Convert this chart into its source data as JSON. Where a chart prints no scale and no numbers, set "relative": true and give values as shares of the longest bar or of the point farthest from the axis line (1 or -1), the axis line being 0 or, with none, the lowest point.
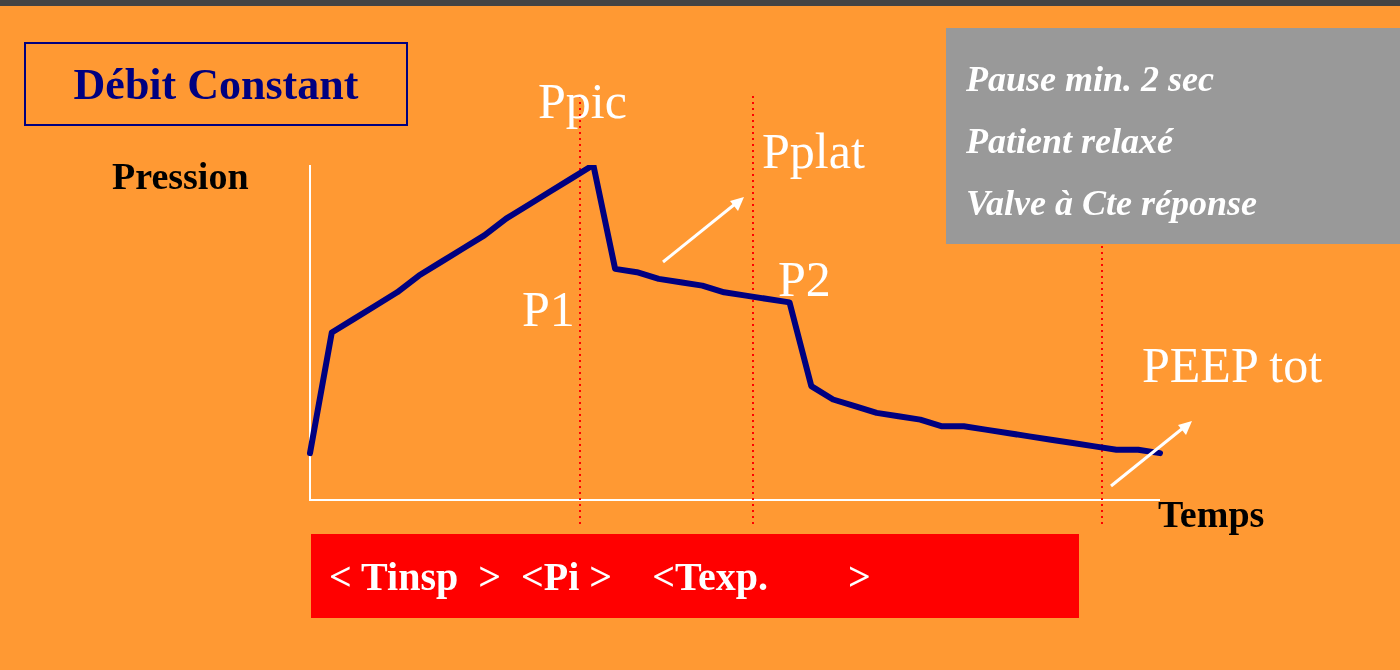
{
  "chart_data": {
    "type": "line",
    "title": "Débit Constant",
    "xlabel": "Temps",
    "ylabel": "Pression",
    "relative": true,
    "marker": "none",
    "categories": [
      null,
      null,
      null,
      null,
      null,
      null,
      null,
      null,
      null,
      null,
      null,
      null,
      null,
      null,
      null,
      null,
      null,
      null,
      null,
      null,
      null,
      null,
      null,
      null,
      null,
      null,
      null,
      null,
      null,
      null,
      null,
      null,
      null,
      null,
      null,
      null,
      null,
      null,
      null,
      null
    ],
    "series": [
      {
        "color": "#000080",
        "values": [
          0.14,
          0.5,
          0.54,
          0.58,
          0.62,
          0.67,
          0.71,
          0.75,
          0.79,
          0.84,
          0.88,
          0.92,
          0.96,
          1.0,
          0.69,
          0.68,
          0.66,
          0.65,
          0.64,
          0.62,
          0.61,
          0.6,
          0.59,
          0.34,
          0.3,
          0.28,
          0.26,
          0.25,
          0.24,
          0.22,
          0.22,
          0.21,
          0.2,
          0.19,
          0.18,
          0.17,
          0.16,
          0.15,
          0.15,
          0.14
        ]
      }
    ],
    "annotations": [
      "Ppic",
      "Pplat",
      "P1",
      "P2",
      "PEEP tot",
      "Pause min. 2 sec",
      "Patient relaxé",
      "Valve à Cte réponse",
      "< Tinsp  >  <Pi >    <Texp.        >"
    ]
  }
}
